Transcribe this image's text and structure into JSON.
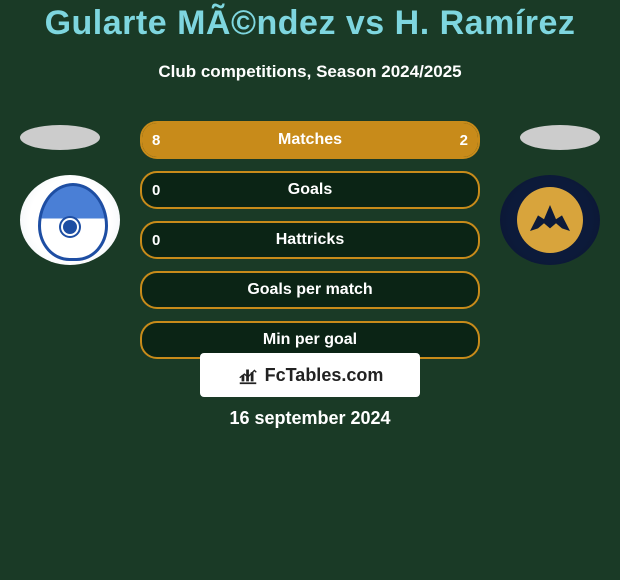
{
  "title": "Gularte MÃ©ndez vs H. Ramírez",
  "subtitle": "Club competitions, Season 2024/2025",
  "brand": {
    "text": "FcTables.com"
  },
  "date": "16 september 2024",
  "colors": {
    "bg": "#1a3a26",
    "accent": "#c88b1a",
    "title": "#7ed6df",
    "text": "#ffffff",
    "bar_bg": "#0b2415"
  },
  "bars": [
    {
      "label": "Matches",
      "left_val": "8",
      "right_val": "2",
      "left_pct": 80,
      "right_pct": 20
    },
    {
      "label": "Goals",
      "left_val": "0",
      "right_val": "",
      "left_pct": 0,
      "right_pct": 0
    },
    {
      "label": "Hattricks",
      "left_val": "0",
      "right_val": "",
      "left_pct": 0,
      "right_pct": 0
    },
    {
      "label": "Goals per match",
      "left_val": "",
      "right_val": "",
      "left_pct": 0,
      "right_pct": 0
    },
    {
      "label": "Min per goal",
      "left_val": "",
      "right_val": "",
      "left_pct": 0,
      "right_pct": 0
    }
  ],
  "teams": {
    "left": "Puebla F.C.",
    "right": "Pumas UNAM"
  }
}
